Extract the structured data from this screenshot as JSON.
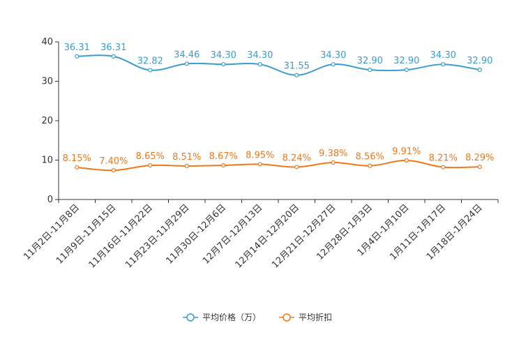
{
  "chart_data": {
    "type": "line",
    "categories": [
      "11月2日-11月8日",
      "11月9日-11月15日",
      "11月16日-11月22日",
      "11月23日-11月29日",
      "11月30日-12月6日",
      "12月7日-12月13日",
      "12月14日-12月20日",
      "12月21日-12月27日",
      "12月28日-1月3日",
      "1月4日-1月10日",
      "1月11日-1月17日",
      "1月18日-1月24日"
    ],
    "ylim": [
      0,
      40
    ],
    "yticks": [
      0,
      10,
      20,
      30,
      40
    ],
    "series": [
      {
        "name": "平均价格（万）",
        "color": "#3a9cd0",
        "values": [
          36.31,
          36.31,
          32.82,
          34.46,
          34.3,
          34.3,
          31.55,
          34.3,
          32.9,
          32.9,
          34.3,
          32.9
        ],
        "labels": [
          "36.31",
          "36.31",
          "32.82",
          "34.46",
          "34.30",
          "34.30",
          "31.55",
          "34.30",
          "32.90",
          "32.90",
          "34.30",
          "32.90"
        ]
      },
      {
        "name": "平均折扣",
        "color": "#f07818",
        "values": [
          8.15,
          7.4,
          8.65,
          8.51,
          8.67,
          8.95,
          8.24,
          9.38,
          8.56,
          9.91,
          8.21,
          8.29
        ],
        "labels": [
          "8.15%",
          "7.40%",
          "8.65%",
          "8.51%",
          "8.67%",
          "8.95%",
          "8.24%",
          "9.38%",
          "8.56%",
          "9.91%",
          "8.21%",
          "8.29%"
        ]
      }
    ],
    "legend_position": "bottom-center"
  }
}
